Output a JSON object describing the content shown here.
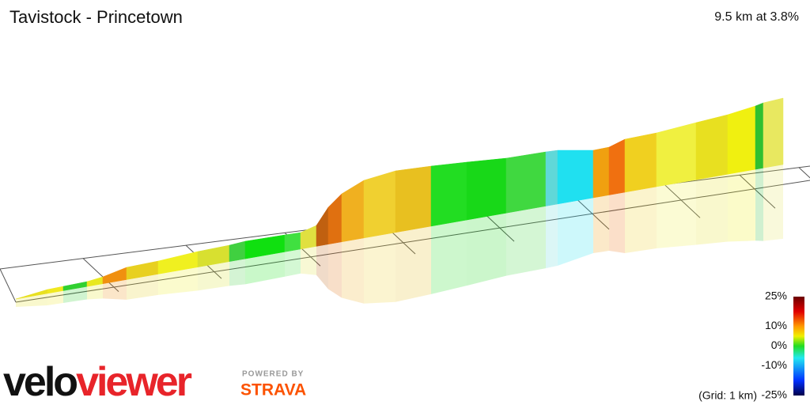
{
  "header": {
    "title": "Tavistock - Princetown",
    "summary": "9.5 km at 3.8%"
  },
  "legend": {
    "ticks": [
      {
        "value": 25,
        "label": "25%"
      },
      {
        "value": 10,
        "label": "10%"
      },
      {
        "value": 0,
        "label": "0%"
      },
      {
        "value": -10,
        "label": "-10%"
      },
      {
        "value": -25,
        "label": "-25%"
      }
    ],
    "min": -25,
    "max": 25,
    "grid_note": "(Grid: 1 km)"
  },
  "branding": {
    "logo_part1": "velo",
    "logo_part2": "viewer",
    "powered_by": "POWERED BY",
    "partner": "STRAVA"
  }
}
